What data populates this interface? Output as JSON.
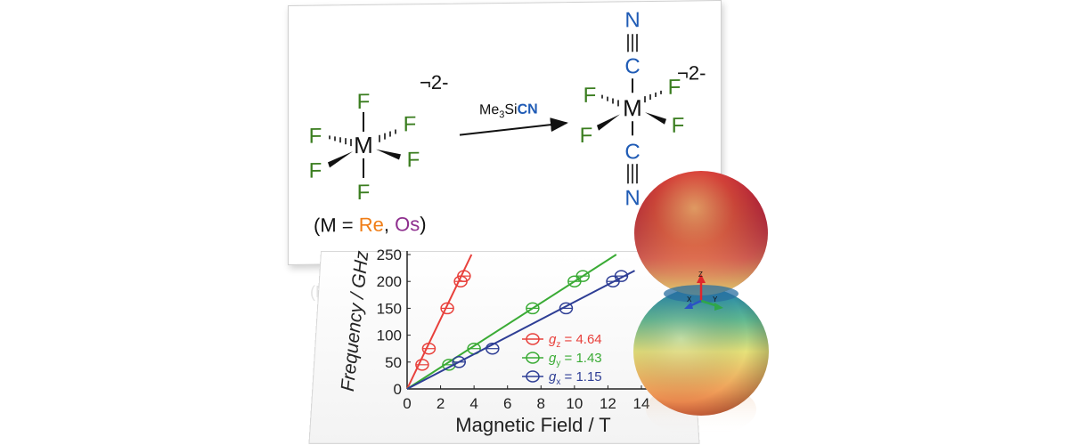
{
  "chemistry": {
    "left_atoms": {
      "axial_top": "F",
      "axial_bottom": "F",
      "center": "M",
      "eq_left_back": "F",
      "eq_right_back": "F",
      "eq_left_front": "F",
      "eq_right_front": "F"
    },
    "left_charge": "¬2-",
    "reagent_prefix": "Me",
    "reagent_sub": "3",
    "reagent_si": "Si",
    "reagent_cn": "CN",
    "right_atoms": {
      "top_n": "N",
      "top_c": "C",
      "center": "M",
      "bottom_c": "C",
      "bottom_n": "N",
      "f1": "F",
      "f2": "F",
      "f3": "F",
      "f4": "F"
    },
    "right_charge": "¬2-",
    "legend_open": "(M = ",
    "legend_re": "Re",
    "legend_sep": ", ",
    "legend_os": "Os",
    "legend_close": ")",
    "colors": {
      "fluorine": "#3a7d1f",
      "rhenium": "#f07d16",
      "osmium": "#8e2f8e",
      "cyanide": "#1f5bb5"
    }
  },
  "axis_frame_labels": {
    "z": "Z",
    "x": "X",
    "y": "Y"
  },
  "chart_data": {
    "type": "scatter",
    "xlabel": "Magnetic Field / T",
    "ylabel": "Frequency / GHz",
    "xlim": [
      0,
      14
    ],
    "ylim": [
      0,
      250
    ],
    "xticks": [
      "0",
      "2",
      "4",
      "6",
      "8",
      "10",
      "12",
      "14"
    ],
    "yticks": [
      "0",
      "50",
      "100",
      "150",
      "200",
      "250"
    ],
    "series": [
      {
        "name": "gz",
        "g_label": "g",
        "sub": "z",
        "value_text": " = 4.64",
        "color": "#e8403b",
        "line_end": [
          3.85,
          250
        ],
        "points": [
          [
            0.9,
            45
          ],
          [
            1.3,
            75
          ],
          [
            2.4,
            150
          ],
          [
            3.2,
            200
          ],
          [
            3.4,
            210
          ]
        ]
      },
      {
        "name": "gy",
        "g_label": "g",
        "sub": "y",
        "value_text": " = 1.43",
        "color": "#3aab35",
        "line_end": [
          12.5,
          250
        ],
        "points": [
          [
            2.5,
            45
          ],
          [
            4.0,
            75
          ],
          [
            7.5,
            150
          ],
          [
            10.0,
            200
          ],
          [
            10.5,
            210
          ]
        ]
      },
      {
        "name": "gx",
        "g_label": "g",
        "sub": "x",
        "value_text": " = 1.15",
        "color": "#2e3e95",
        "line_end": [
          13.6,
          220
        ],
        "points": [
          [
            3.1,
            50
          ],
          [
            5.1,
            75
          ],
          [
            9.5,
            150
          ],
          [
            12.3,
            200
          ],
          [
            12.8,
            210
          ]
        ]
      }
    ]
  }
}
